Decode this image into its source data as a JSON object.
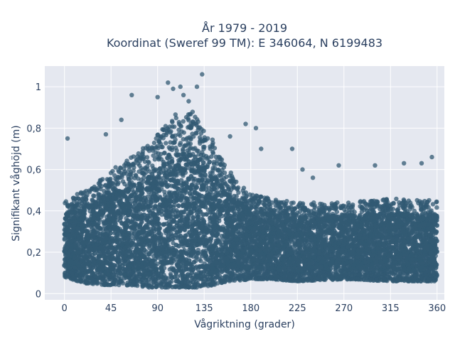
{
  "chart_data": {
    "type": "scatter",
    "title": "År 1979 - 2019",
    "subtitle": "Koordinat (Sweref 99 TM): E 346064, N 6199483",
    "xlabel": "Vågriktning (grader)",
    "ylabel": "Signifikant våghöjd (m)",
    "xlim": [
      -19,
      367
    ],
    "ylim": [
      -0.03,
      1.1
    ],
    "x_ticks": [
      0,
      45,
      90,
      135,
      180,
      225,
      270,
      315,
      360
    ],
    "x_tick_labels": [
      "0",
      "45",
      "90",
      "135",
      "180",
      "225",
      "270",
      "315",
      "360"
    ],
    "y_ticks": [
      0,
      0.2,
      0.4,
      0.6,
      0.8,
      1
    ],
    "y_tick_labels": [
      "0",
      "0,2",
      "0,4",
      "0,6",
      "0,8",
      "1"
    ],
    "grid": true,
    "marker_color": "#325a73",
    "plot_bg": "#e5e8f0",
    "envelope": {
      "x": [
        0,
        20,
        45,
        65,
        80,
        95,
        110,
        125,
        135,
        150,
        165,
        180,
        200,
        225,
        270,
        315,
        360
      ],
      "y_low": [
        0.08,
        0.05,
        0.04,
        0.04,
        0.03,
        0.03,
        0.03,
        0.03,
        0.03,
        0.05,
        0.06,
        0.07,
        0.07,
        0.06,
        0.07,
        0.06,
        0.06
      ],
      "y_high": [
        0.45,
        0.5,
        0.6,
        0.66,
        0.72,
        0.8,
        0.88,
        0.88,
        0.82,
        0.68,
        0.55,
        0.48,
        0.46,
        0.44,
        0.44,
        0.46,
        0.45
      ]
    },
    "outliers": [
      [
        3,
        0.75
      ],
      [
        65,
        0.96
      ],
      [
        100,
        1.02
      ],
      [
        105,
        0.99
      ],
      [
        112,
        1.0
      ],
      [
        115,
        0.96
      ],
      [
        128,
        1.0
      ],
      [
        133,
        1.06
      ],
      [
        90,
        0.95
      ],
      [
        120,
        0.93
      ],
      [
        55,
        0.84
      ],
      [
        40,
        0.77
      ],
      [
        185,
        0.8
      ],
      [
        160,
        0.76
      ],
      [
        175,
        0.82
      ],
      [
        220,
        0.7
      ],
      [
        190,
        0.7
      ],
      [
        300,
        0.62
      ],
      [
        328,
        0.63
      ],
      [
        355,
        0.66
      ],
      [
        265,
        0.62
      ],
      [
        240,
        0.56
      ],
      [
        230,
        0.6
      ],
      [
        345,
        0.63
      ]
    ]
  }
}
